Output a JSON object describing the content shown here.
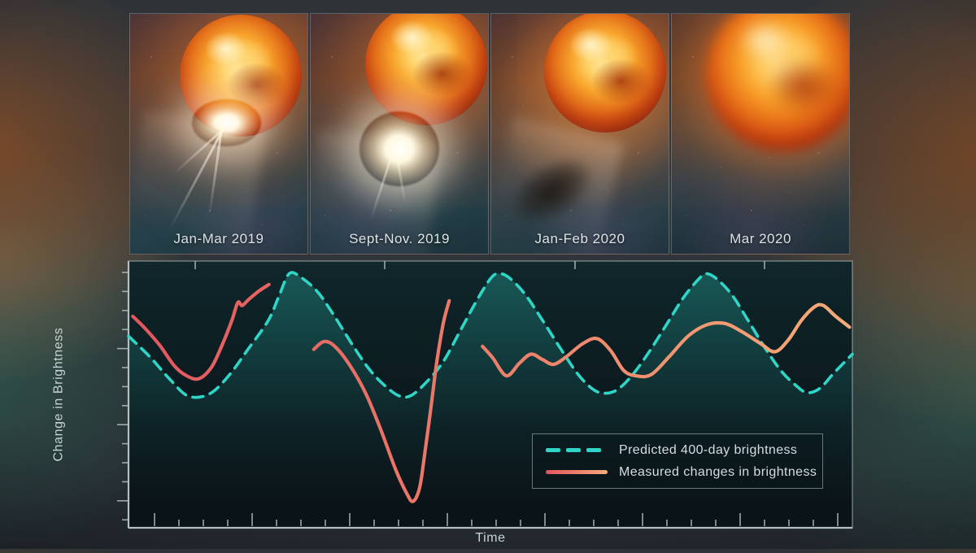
{
  "figure": {
    "panels": [
      {
        "caption": "Jan-Mar 2019",
        "variant": "bright-flare"
      },
      {
        "caption": "Sept-Nov. 2019",
        "variant": "large-outburst"
      },
      {
        "caption": "Jan-Feb 2020",
        "variant": "dust-cloud"
      },
      {
        "caption": "Mar 2020",
        "variant": "blurred-dim"
      }
    ]
  },
  "chart_data": {
    "type": "line",
    "title": "",
    "xlabel": "Time",
    "ylabel": "Change in Brightness",
    "x_range": [
      0,
      100
    ],
    "y_range": [
      -3.24,
      1.2
    ],
    "y_unit": "relative to predicted pulsation amplitude (1 = predicted max)",
    "grid": false,
    "legend_position": "lower-right",
    "series": [
      {
        "name": "Predicted 400-day brightness",
        "style": "dashed",
        "color": "#2fd5c6",
        "points": [
          [
            0,
            -0.05
          ],
          [
            3,
            -0.4
          ],
          [
            5.8,
            -0.78
          ],
          [
            8.3,
            -1.05
          ],
          [
            11.2,
            -1.01
          ],
          [
            13.9,
            -0.7
          ],
          [
            16.5,
            -0.27
          ],
          [
            19.3,
            0.21
          ],
          [
            20.8,
            0.62
          ],
          [
            22.2,
            0.99
          ],
          [
            23.8,
            0.93
          ],
          [
            26.1,
            0.69
          ],
          [
            28.3,
            0.31
          ],
          [
            30.6,
            -0.13
          ],
          [
            33,
            -0.56
          ],
          [
            35.1,
            -0.84
          ],
          [
            37.3,
            -1.04
          ],
          [
            39,
            -1.04
          ],
          [
            41.2,
            -0.81
          ],
          [
            43.5,
            -0.47
          ],
          [
            45.7,
            0.01
          ],
          [
            48,
            0.52
          ],
          [
            49.9,
            0.89
          ],
          [
            51,
            0.99
          ],
          [
            52.5,
            0.93
          ],
          [
            54.7,
            0.66
          ],
          [
            57,
            0.25
          ],
          [
            59.6,
            -0.24
          ],
          [
            62,
            -0.67
          ],
          [
            64,
            -0.92
          ],
          [
            65.6,
            -1
          ],
          [
            67.4,
            -0.95
          ],
          [
            69.3,
            -0.74
          ],
          [
            71.6,
            -0.37
          ],
          [
            74.2,
            0.12
          ],
          [
            76.6,
            0.58
          ],
          [
            78.7,
            0.89
          ],
          [
            79.8,
            0.99
          ],
          [
            81.3,
            0.9
          ],
          [
            83.4,
            0.63
          ],
          [
            85.6,
            0.21
          ],
          [
            87.9,
            -0.24
          ],
          [
            90.1,
            -0.62
          ],
          [
            92.1,
            -0.86
          ],
          [
            93.7,
            -0.99
          ],
          [
            95.5,
            -0.92
          ],
          [
            97.4,
            -0.67
          ],
          [
            100,
            -0.35
          ]
        ]
      },
      {
        "name": "Measured changes in brightness",
        "style": "solid",
        "color_gradient": [
          "#e1565e",
          "#ec7e6a",
          "#f6ab79"
        ],
        "segments": [
          [
            [
              0.6,
              0.28
            ],
            [
              2.2,
              0.09
            ],
            [
              4.3,
              -0.2
            ],
            [
              6.3,
              -0.54
            ],
            [
              7.9,
              -0.7
            ],
            [
              9.7,
              -0.76
            ],
            [
              11.5,
              -0.56
            ],
            [
              13,
              -0.18
            ],
            [
              14.3,
              0.22
            ],
            [
              15.1,
              0.51
            ],
            [
              15.7,
              0.46
            ],
            [
              16.6,
              0.56
            ],
            [
              18,
              0.7
            ],
            [
              19.4,
              0.81
            ]
          ],
          [
            [
              25.6,
              -0.27
            ],
            [
              27,
              -0.14
            ],
            [
              28.5,
              -0.22
            ],
            [
              30.6,
              -0.54
            ],
            [
              32.8,
              -1.01
            ],
            [
              34.8,
              -1.59
            ],
            [
              36.9,
              -2.27
            ],
            [
              38.4,
              -2.66
            ],
            [
              39.3,
              -2.8
            ],
            [
              40.2,
              -2.58
            ],
            [
              40.9,
              -2.03
            ],
            [
              41.8,
              -1.22
            ],
            [
              42.6,
              -0.47
            ],
            [
              43.5,
              0.17
            ],
            [
              44.3,
              0.54
            ]
          ],
          [
            [
              48.9,
              -0.22
            ],
            [
              50.3,
              -0.41
            ],
            [
              52.2,
              -0.71
            ],
            [
              54,
              -0.5
            ],
            [
              55.6,
              -0.35
            ],
            [
              57.2,
              -0.44
            ],
            [
              58.7,
              -0.52
            ],
            [
              60.4,
              -0.4
            ],
            [
              62.7,
              -0.18
            ],
            [
              64.7,
              -0.09
            ],
            [
              66.6,
              -0.29
            ],
            [
              68.4,
              -0.62
            ],
            [
              70.1,
              -0.71
            ],
            [
              72.2,
              -0.69
            ],
            [
              74.7,
              -0.39
            ],
            [
              77.3,
              -0.05
            ],
            [
              79.9,
              0.14
            ],
            [
              82.4,
              0.16
            ],
            [
              84.8,
              0.02
            ],
            [
              87.4,
              -0.18
            ],
            [
              89.3,
              -0.31
            ],
            [
              91.1,
              -0.12
            ],
            [
              93,
              0.22
            ],
            [
              94.8,
              0.44
            ],
            [
              96,
              0.46
            ],
            [
              97.6,
              0.29
            ],
            [
              99.6,
              0.1
            ]
          ]
        ]
      }
    ]
  },
  "colors": {
    "teal": "#2fd5c6",
    "coral_start": "#e1565e",
    "coral_mid": "#ec7e6a",
    "coral_end": "#f6ab79",
    "axis": "#b3bfc1",
    "text": "#d5dde0",
    "chart_area_fill": "rgba(47,213,198,0.30)"
  }
}
